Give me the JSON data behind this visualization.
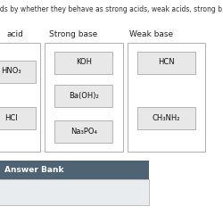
{
  "title": "nds by whether they behave as strong acids, weak acids, strong b",
  "columns": [
    [
      "acid",
      0.03
    ],
    [
      "Strong base",
      0.22
    ],
    [
      "Weak base",
      0.58
    ]
  ],
  "strong_acid_items": [
    "HNO₃",
    "HCl"
  ],
  "strong_base_items": [
    "KOH",
    "Ba(OH)₂",
    "Na₃PO₄"
  ],
  "weak_base_items": [
    "HCN",
    "CH₃NH₂"
  ],
  "answer_bank_label": "Answer Bank",
  "answer_bank_color": "#4e6475",
  "answer_bank_text_color": "#ffffff",
  "col_box_edge": "#b0b0b0",
  "col_box_face": "#ffffff",
  "item_box_face": "#e8e8e8",
  "item_box_edge": "#aaaaaa",
  "answer_body_face": "#e8ecef",
  "answer_body_edge": "#aaaaaa",
  "bg_color": "#ffffff",
  "title_fontsize": 5.5,
  "header_fontsize": 6.5,
  "item_fontsize": 6
}
